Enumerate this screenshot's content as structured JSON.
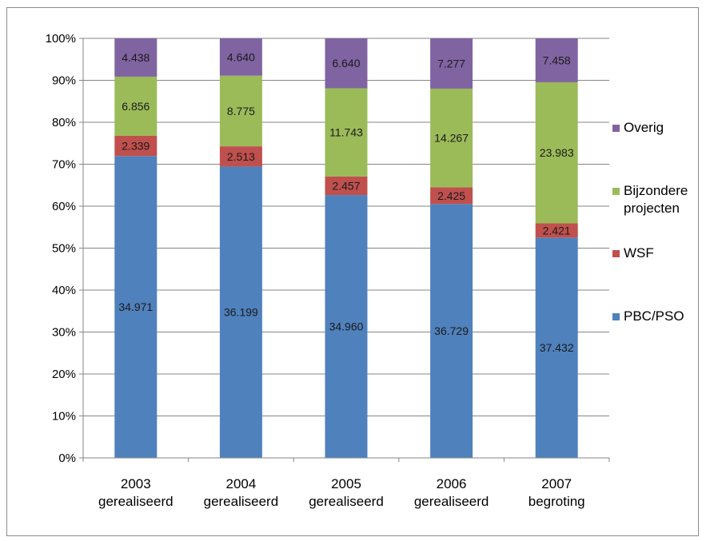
{
  "chart_data": {
    "type": "bar",
    "stacked": "percent",
    "categories": [
      [
        "2003",
        "gerealiseerd"
      ],
      [
        "2004",
        "gerealiseerd"
      ],
      [
        "2005",
        "gerealiseerd"
      ],
      [
        "2006",
        "gerealiseerd"
      ],
      [
        "2007",
        "begroting"
      ]
    ],
    "series": [
      {
        "name": "PBC/PSO",
        "color": "#4f81bd",
        "values": [
          34971,
          36199,
          34960,
          36729,
          37432
        ],
        "labels": [
          "34.971",
          "36.199",
          "34.960",
          "36.729",
          "37.432"
        ]
      },
      {
        "name": "WSF",
        "color": "#c0504d",
        "values": [
          2339,
          2513,
          2457,
          2425,
          2421
        ],
        "labels": [
          "2.339",
          "2.513",
          "2.457",
          "2.425",
          "2.421"
        ]
      },
      {
        "name": "Bijzondere projecten",
        "color": "#9bbb59",
        "values": [
          6856,
          8775,
          11743,
          14267,
          23983
        ],
        "labels": [
          "6.856",
          "8.775",
          "11.743",
          "14.267",
          "23.983"
        ]
      },
      {
        "name": "Overig",
        "color": "#8064a2",
        "values": [
          4438,
          4640,
          6640,
          7277,
          7458
        ],
        "labels": [
          "4.438",
          "4.640",
          "6.640",
          "7.277",
          "7.458"
        ]
      }
    ],
    "legend_order": [
      "Overig",
      "Bijzondere projecten",
      "WSF",
      "PBC/PSO"
    ],
    "legend_lines": {
      "Overig": [
        "Overig"
      ],
      "Bijzondere projecten": [
        "Bijzondere",
        "projecten"
      ],
      "WSF": [
        "WSF"
      ],
      "PBC/PSO": [
        "PBC/PSO"
      ]
    },
    "yticks": [
      "0%",
      "10%",
      "20%",
      "30%",
      "40%",
      "50%",
      "60%",
      "70%",
      "80%",
      "90%",
      "100%"
    ],
    "ylim": [
      0,
      100
    ],
    "grid": true,
    "legend_position": "right"
  }
}
